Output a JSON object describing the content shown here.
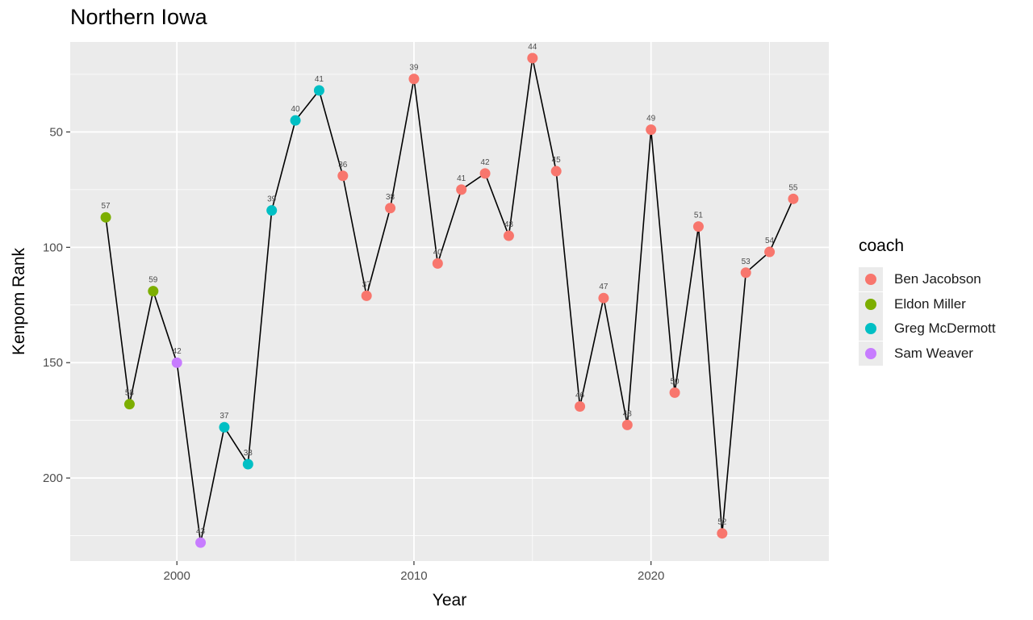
{
  "chart_data": {
    "type": "line",
    "title": "Northern Iowa",
    "xlabel": "Year",
    "ylabel": "Kenpom Rank",
    "x_ticks": [
      2000,
      2010,
      2020
    ],
    "y_ticks": [
      50,
      100,
      150,
      200
    ],
    "xlim": [
      1995.5,
      2027.5
    ],
    "ylim": [
      236,
      11
    ],
    "y_reversed": true,
    "grid": true,
    "legend": {
      "title": "coach",
      "placement": "right"
    },
    "coaches": [
      {
        "name": "Ben Jacobson",
        "color": "#F8766D"
      },
      {
        "name": "Eldon Miller",
        "color": "#7CAE00"
      },
      {
        "name": "Greg McDermott",
        "color": "#00BFC4"
      },
      {
        "name": "Sam Weaver",
        "color": "#C77CFF"
      }
    ],
    "points": [
      {
        "year": 1997,
        "rank": 87,
        "label": "57",
        "coach": "Eldon Miller"
      },
      {
        "year": 1998,
        "rank": 168,
        "label": "58",
        "coach": "Eldon Miller"
      },
      {
        "year": 1999,
        "rank": 119,
        "label": "59",
        "coach": "Eldon Miller"
      },
      {
        "year": 2000,
        "rank": 150,
        "label": "42",
        "coach": "Sam Weaver"
      },
      {
        "year": 2001,
        "rank": 228,
        "label": "43",
        "coach": "Sam Weaver"
      },
      {
        "year": 2002,
        "rank": 178,
        "label": "37",
        "coach": "Greg McDermott"
      },
      {
        "year": 2003,
        "rank": 194,
        "label": "38",
        "coach": "Greg McDermott"
      },
      {
        "year": 2004,
        "rank": 84,
        "label": "39",
        "coach": "Greg McDermott"
      },
      {
        "year": 2005,
        "rank": 45,
        "label": "40",
        "coach": "Greg McDermott"
      },
      {
        "year": 2006,
        "rank": 32,
        "label": "41",
        "coach": "Greg McDermott"
      },
      {
        "year": 2007,
        "rank": 69,
        "label": "36",
        "coach": "Ben Jacobson"
      },
      {
        "year": 2008,
        "rank": 121,
        "label": "37",
        "coach": "Ben Jacobson"
      },
      {
        "year": 2009,
        "rank": 83,
        "label": "38",
        "coach": "Ben Jacobson"
      },
      {
        "year": 2010,
        "rank": 27,
        "label": "39",
        "coach": "Ben Jacobson"
      },
      {
        "year": 2011,
        "rank": 107,
        "label": "40",
        "coach": "Ben Jacobson"
      },
      {
        "year": 2012,
        "rank": 75,
        "label": "41",
        "coach": "Ben Jacobson"
      },
      {
        "year": 2013,
        "rank": 68,
        "label": "42",
        "coach": "Ben Jacobson"
      },
      {
        "year": 2014,
        "rank": 95,
        "label": "43",
        "coach": "Ben Jacobson"
      },
      {
        "year": 2015,
        "rank": 18,
        "label": "44",
        "coach": "Ben Jacobson"
      },
      {
        "year": 2016,
        "rank": 67,
        "label": "45",
        "coach": "Ben Jacobson"
      },
      {
        "year": 2017,
        "rank": 169,
        "label": "46",
        "coach": "Ben Jacobson"
      },
      {
        "year": 2018,
        "rank": 122,
        "label": "47",
        "coach": "Ben Jacobson"
      },
      {
        "year": 2019,
        "rank": 177,
        "label": "48",
        "coach": "Ben Jacobson"
      },
      {
        "year": 2020,
        "rank": 49,
        "label": "49",
        "coach": "Ben Jacobson"
      },
      {
        "year": 2021,
        "rank": 163,
        "label": "50",
        "coach": "Ben Jacobson"
      },
      {
        "year": 2022,
        "rank": 91,
        "label": "51",
        "coach": "Ben Jacobson"
      },
      {
        "year": 2023,
        "rank": 224,
        "label": "52",
        "coach": "Ben Jacobson"
      },
      {
        "year": 2024,
        "rank": 111,
        "label": "53",
        "coach": "Ben Jacobson"
      },
      {
        "year": 2025,
        "rank": 102,
        "label": "54",
        "coach": "Ben Jacobson"
      },
      {
        "year": 2026,
        "rank": 79,
        "label": "55",
        "coach": "Ben Jacobson"
      }
    ]
  }
}
